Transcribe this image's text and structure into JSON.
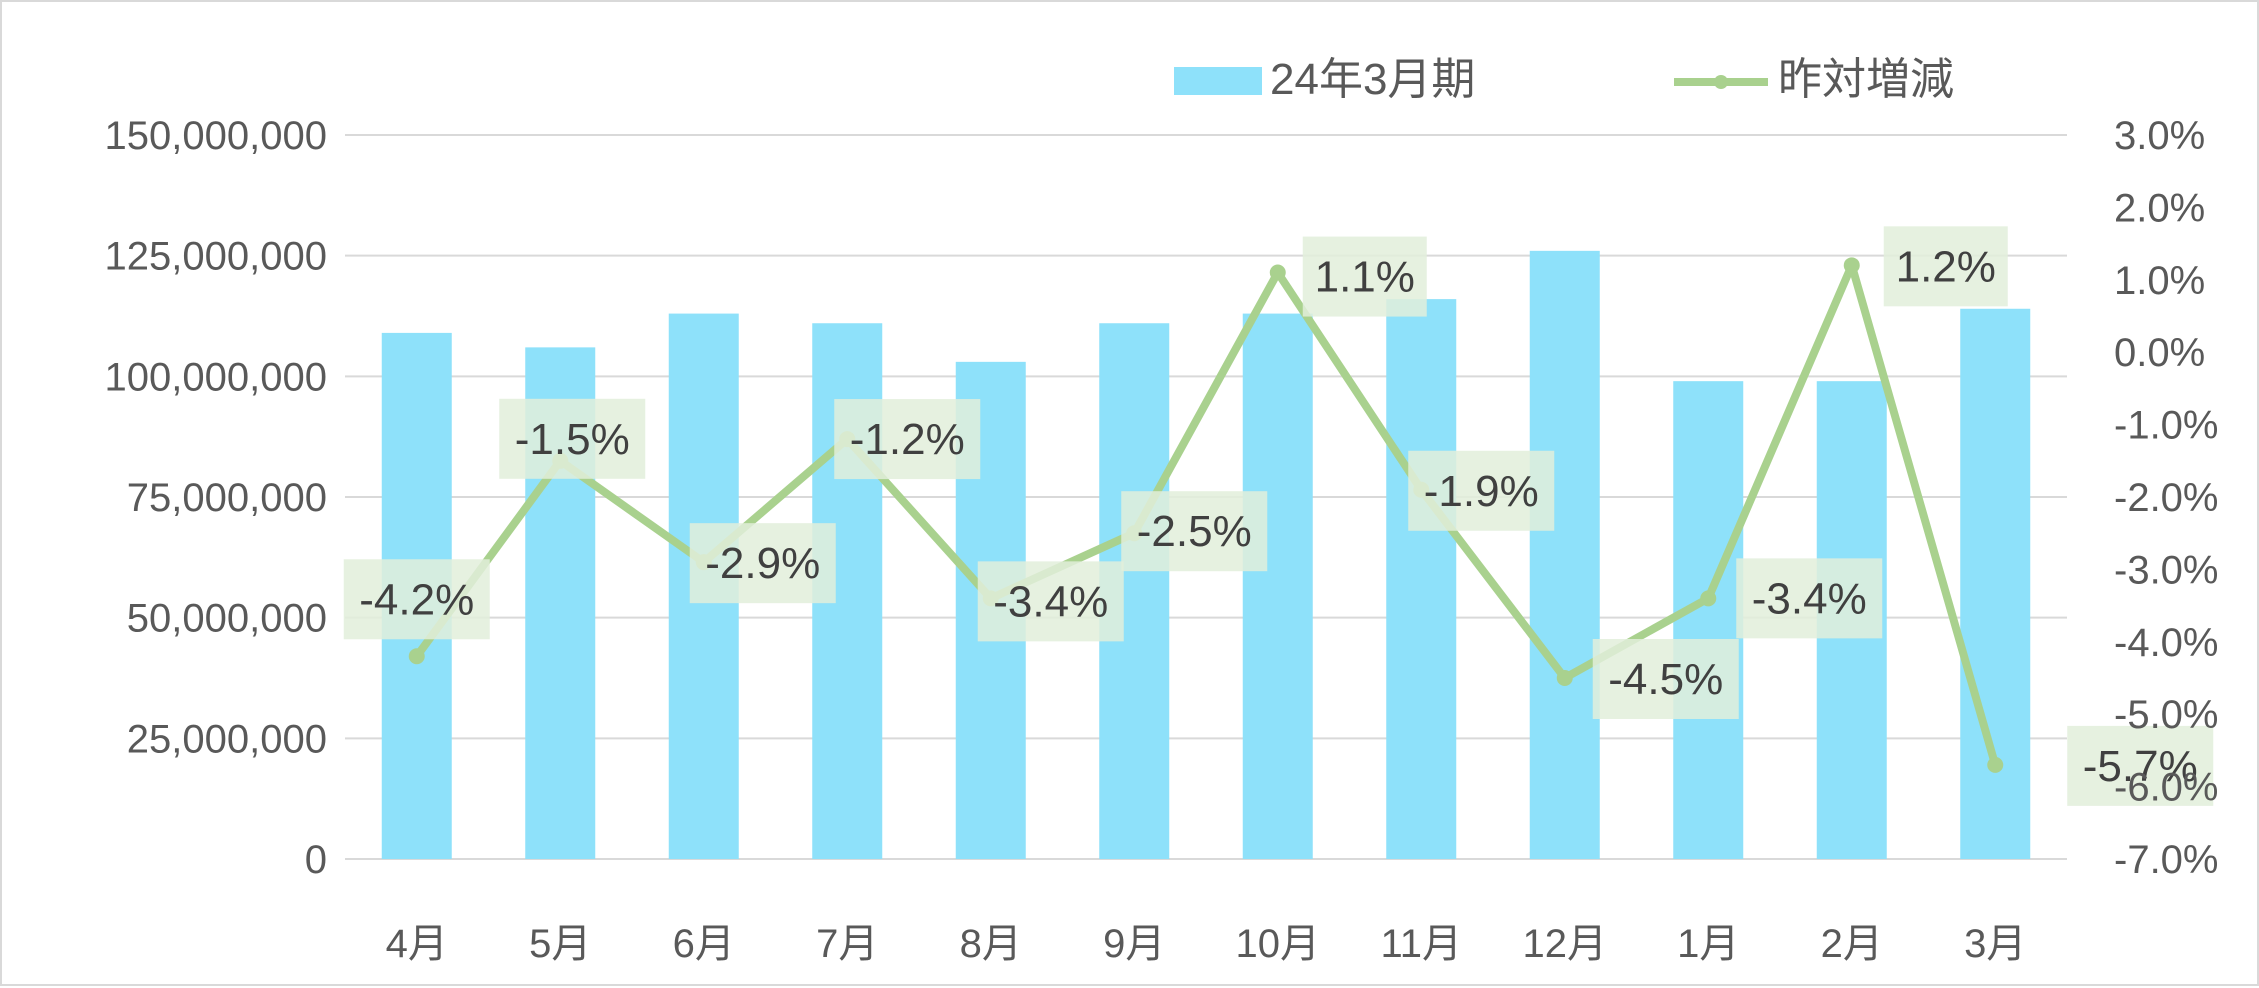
{
  "chart_data": {
    "type": "bar",
    "categories": [
      "4月",
      "5月",
      "6月",
      "7月",
      "8月",
      "9月",
      "10月",
      "11月",
      "12月",
      "1月",
      "2月",
      "3月"
    ],
    "series": [
      {
        "name": "24年3月期",
        "type": "bar",
        "axis": "left",
        "color": "#8ee1fa",
        "values": [
          109000000,
          106000000,
          113000000,
          111000000,
          103000000,
          111000000,
          113000000,
          116000000,
          126000000,
          99000000,
          99000000,
          114000000
        ]
      },
      {
        "name": "昨対増減",
        "type": "line",
        "axis": "right",
        "color": "#a9d18e",
        "values": [
          -0.042,
          -0.015,
          -0.029,
          -0.012,
          -0.034,
          -0.025,
          0.011,
          -0.019,
          -0.045,
          -0.034,
          0.012,
          -0.057
        ],
        "data_labels": [
          "-4.2%",
          "-1.5%",
          "-2.9%",
          "-1.2%",
          "-3.4%",
          "-2.5%",
          "1.1%",
          "-1.9%",
          "-4.5%",
          "-3.4%",
          "1.2%",
          "-5.7%"
        ]
      }
    ],
    "y_left": {
      "ylim": [
        0,
        150000000
      ],
      "ticks": [
        0,
        25000000,
        50000000,
        75000000,
        100000000,
        125000000,
        150000000
      ],
      "tick_labels": [
        "0",
        "25,000,000",
        "50,000,000",
        "75,000,000",
        "100,000,000",
        "125,000,000",
        "150,000,000"
      ]
    },
    "y_right": {
      "ylim": [
        -0.07,
        0.03
      ],
      "ticks": [
        -0.07,
        -0.06,
        -0.05,
        -0.04,
        -0.03,
        -0.02,
        -0.01,
        0.0,
        0.01,
        0.02,
        0.03
      ],
      "tick_labels": [
        "-7.0%",
        "-6.0%",
        "-5.0%",
        "-4.0%",
        "-3.0%",
        "-2.0%",
        "-1.0%",
        "0.0%",
        "1.0%",
        "2.0%",
        "3.0%"
      ]
    },
    "grid": true,
    "legend_position": "top-right",
    "label_box_color": "#e2efda"
  }
}
